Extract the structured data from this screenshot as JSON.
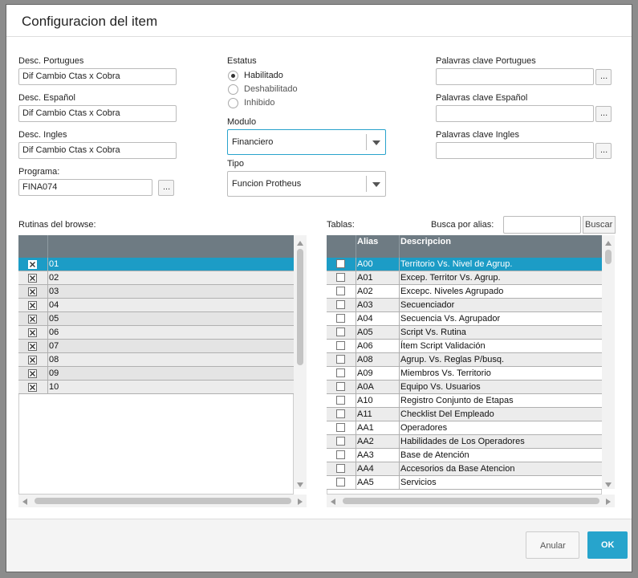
{
  "dialog": {
    "title": "Configuracion del item",
    "fields": [
      {
        "label": "Desc. Portugues",
        "value": "Dif Cambio Ctas x Cobra"
      },
      {
        "label": "Desc. Español",
        "value": "Dif Cambio Ctas x Cobra"
      },
      {
        "label": "Desc. Ingles",
        "value": "Dif Cambio Ctas x Cobra"
      }
    ],
    "programa": {
      "label": "Programa:",
      "value": "FINA074"
    },
    "ellipsis_button": "...",
    "estatus": {
      "label": "Estatus",
      "options": [
        "Habilitado",
        "Deshabilitado",
        "Inhibido"
      ]
    },
    "modulo": {
      "label": "Modulo",
      "value": "Financiero"
    },
    "tipo": {
      "label": "Tipo",
      "value": "Funcion Protheus"
    },
    "keywords": [
      "Palavras clave Portugues",
      "Palavras clave Español",
      "Palavras clave Ingles"
    ],
    "rutinas": {
      "label": "Rutinas del browse:",
      "rows": [
        "01",
        "02",
        "03",
        "04",
        "05",
        "06",
        "07",
        "08",
        "09",
        "10"
      ]
    },
    "tablas": {
      "label": "Tablas:",
      "search_label": "Busca por alias:",
      "search_button": "Buscar",
      "columns": [
        "Alias",
        "Descripcion"
      ],
      "rows": [
        [
          "A00",
          "Territorio Vs. Nivel de Agrup."
        ],
        [
          "A01",
          "Excep. Territor Vs. Agrup."
        ],
        [
          "A02",
          "Excepc. Niveles Agrupado"
        ],
        [
          "A03",
          "Secuenciador"
        ],
        [
          "A04",
          "Secuencia Vs. Agrupador"
        ],
        [
          "A05",
          "Script Vs. Rutina"
        ],
        [
          "A06",
          "Ítem Script Validación"
        ],
        [
          "A08",
          "Agrup. Vs. Reglas P/busq."
        ],
        [
          "A09",
          "Miembros Vs. Territorio"
        ],
        [
          "A0A",
          "Equipo Vs. Usuarios"
        ],
        [
          "A10",
          "Registro Conjunto de Etapas"
        ],
        [
          "A11",
          "Checklist Del Empleado"
        ],
        [
          "AA1",
          "Operadores"
        ],
        [
          "AA2",
          "Habilidades de Los Operadores"
        ],
        [
          "AA3",
          "Base de Atención"
        ],
        [
          "AA4",
          "Accesorios da Base Atencion"
        ],
        [
          "AA5",
          "Servicios"
        ]
      ]
    },
    "buttons": {
      "cancel": "Anular",
      "ok": "OK"
    }
  }
}
